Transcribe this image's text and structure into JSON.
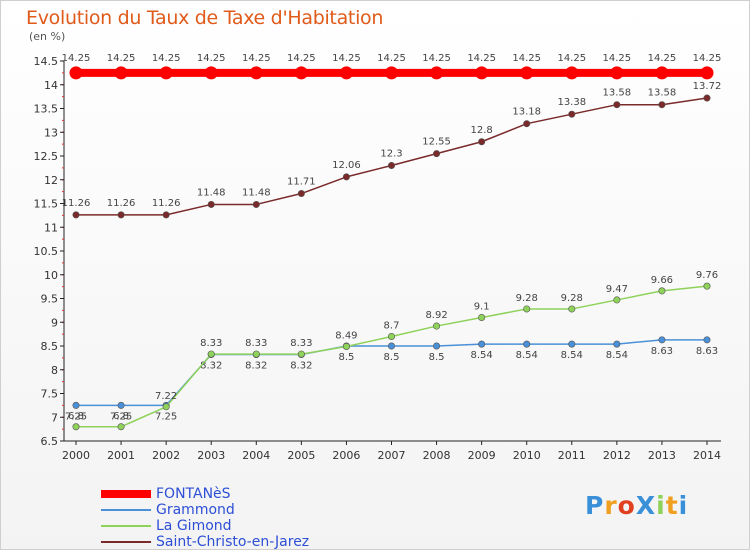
{
  "chart_data": {
    "type": "line",
    "title": "Evolution du Taux de Taxe d'Habitation",
    "unit_label": "(en %)",
    "x": [
      "2000",
      "2001",
      "2002",
      "2003",
      "2004",
      "2005",
      "2006",
      "2007",
      "2008",
      "2009",
      "2010",
      "2011",
      "2012",
      "2013",
      "2014"
    ],
    "ylim": [
      6.5,
      14.5
    ],
    "yticks": [
      "6.5",
      "7",
      "7.5",
      "8",
      "8.5",
      "9",
      "9.5",
      "10",
      "10.5",
      "11",
      "11.5",
      "12",
      "12.5",
      "13",
      "13.5",
      "14",
      "14.5"
    ],
    "grid": false,
    "legend_position": "bottom-left",
    "series": [
      {
        "name": "FONTANèS",
        "color": "#ff0000",
        "values": [
          14.25,
          14.25,
          14.25,
          14.25,
          14.25,
          14.25,
          14.25,
          14.25,
          14.25,
          14.25,
          14.25,
          14.25,
          14.25,
          14.25,
          14.25
        ],
        "labels": [
          "14.25",
          "14.25",
          "14.25",
          "14.25",
          "14.25",
          "14.25",
          "14.25",
          "14.25",
          "14.25",
          "14.25",
          "14.25",
          "14.25",
          "14.25",
          "14.25",
          "14.25"
        ]
      },
      {
        "name": "Grammond",
        "color": "#4a90d9",
        "values": [
          7.25,
          7.25,
          7.25,
          8.32,
          8.32,
          8.32,
          8.5,
          8.5,
          8.5,
          8.54,
          8.54,
          8.54,
          8.54,
          8.63,
          8.63
        ],
        "labels": [
          "7.25",
          "7.25",
          "7.25",
          "8.32",
          "8.32",
          "8.32",
          "8.5",
          "8.5",
          "8.5",
          "8.54",
          "8.54",
          "8.54",
          "8.54",
          "8.63",
          "8.63"
        ]
      },
      {
        "name": "La Gimond",
        "color": "#8ed25a",
        "values": [
          6.8,
          6.8,
          7.22,
          8.33,
          8.33,
          8.33,
          8.49,
          8.7,
          8.92,
          9.1,
          9.28,
          9.28,
          9.47,
          9.66,
          9.76
        ],
        "labels": [
          "6.8",
          "6.8",
          "7.22",
          "8.33",
          "8.33",
          "8.33",
          "8.49",
          "8.7",
          "8.92",
          "9.1",
          "9.28",
          "9.28",
          "9.47",
          "9.66",
          "9.76"
        ]
      },
      {
        "name": "Saint-Christo-en-Jarez",
        "color": "#7a2a2a",
        "values": [
          11.26,
          11.26,
          11.26,
          11.48,
          11.48,
          11.71,
          12.06,
          12.3,
          12.55,
          12.8,
          13.18,
          13.38,
          13.58,
          13.58,
          13.72
        ],
        "labels": [
          "11.26",
          "11.26",
          "11.26",
          "11.48",
          "11.48",
          "11.71",
          "12.06",
          "12.3",
          "12.55",
          "12.8",
          "13.18",
          "13.38",
          "13.58",
          "13.58",
          "13.72"
        ]
      }
    ]
  },
  "legend": {
    "items": [
      {
        "label": "FONTANèS",
        "color": "#ff0000"
      },
      {
        "label": "Grammond",
        "color": "#4a90d9"
      },
      {
        "label": "La Gimond",
        "color": "#8ed25a"
      },
      {
        "label": "Saint-Christo-en-Jarez",
        "color": "#7a2a2a"
      }
    ]
  },
  "brand": {
    "logo_text": "ProXiti",
    "letters": [
      {
        "ch": "P",
        "color": "#3a8fd9"
      },
      {
        "ch": "r",
        "color": "#f0a020"
      },
      {
        "ch": "o",
        "color": "#e04020"
      },
      {
        "ch": "X",
        "color": "#3a8fd9"
      },
      {
        "ch": "i",
        "color": "#8ed25a"
      },
      {
        "ch": "t",
        "color": "#f0a020"
      },
      {
        "ch": "i",
        "color": "#3a8fd9"
      }
    ]
  }
}
